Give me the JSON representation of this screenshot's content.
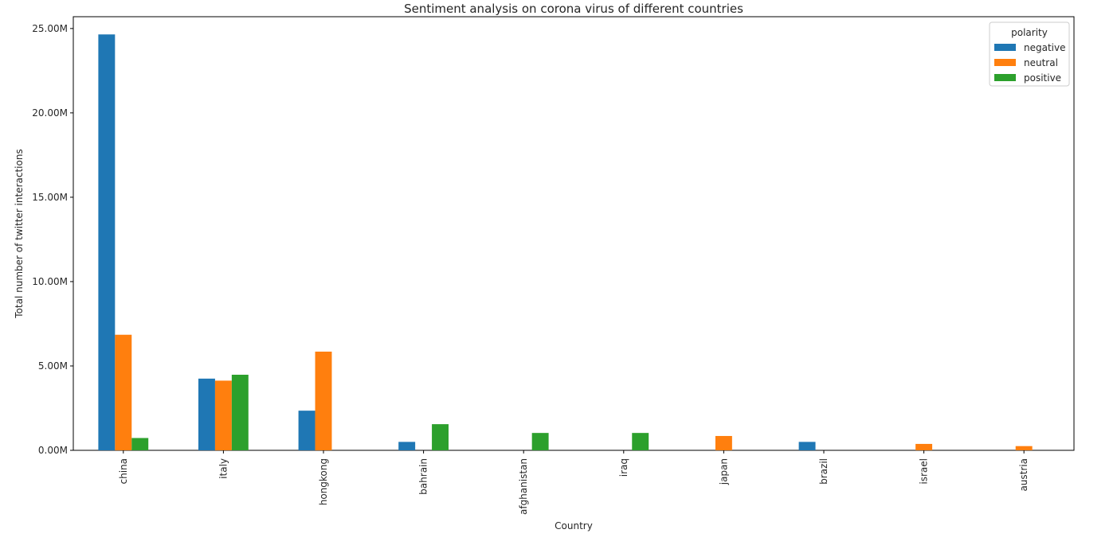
{
  "chart_data": {
    "type": "bar",
    "title": "Sentiment analysis on corona virus of different countries",
    "xlabel": "Country",
    "ylabel": "Total number of twitter interactions",
    "ylim": [
      0,
      25700000
    ],
    "yticks": [
      0,
      5000000,
      10000000,
      15000000,
      20000000,
      25000000
    ],
    "ytick_labels": [
      "0.00M",
      "5.00M",
      "10.00M",
      "15.00M",
      "20.00M",
      "25.00M"
    ],
    "categories": [
      "china",
      "italy",
      "hongkong",
      "bahrain",
      "afghanistan",
      "iraq",
      "japan",
      "brazil",
      "israel",
      "austria"
    ],
    "series": [
      {
        "name": "negative",
        "color": "#1f77b4",
        "values": [
          24650000,
          4250000,
          2350000,
          500000,
          0,
          0,
          0,
          500000,
          0,
          0
        ]
      },
      {
        "name": "neutral",
        "color": "#ff7f0e",
        "values": [
          6850000,
          4130000,
          5850000,
          0,
          0,
          0,
          850000,
          0,
          380000,
          250000
        ]
      },
      {
        "name": "positive",
        "color": "#2ca02c",
        "values": [
          730000,
          4480000,
          0,
          1550000,
          1030000,
          1030000,
          0,
          0,
          0,
          0
        ]
      }
    ],
    "legend": {
      "title": "polarity",
      "position": "top-right"
    },
    "grid": false
  }
}
